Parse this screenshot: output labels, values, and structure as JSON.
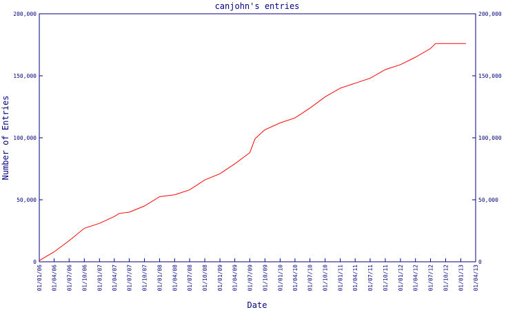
{
  "chart_data": {
    "type": "line",
    "title": "canjohn's entries",
    "x_label": "Date",
    "y_label": "Number of Entries",
    "x": [
      "01/01/06",
      "01/04/06",
      "01/07/06",
      "01/10/06",
      "01/01/07",
      "01/04/07",
      "01/05/07",
      "01/07/07",
      "01/10/07",
      "01/01/08",
      "01/04/08",
      "01/07/08",
      "01/10/08",
      "01/01/09",
      "01/04/09",
      "01/07/09",
      "01/08/09",
      "01/09/09",
      "01/10/09",
      "01/01/10",
      "01/04/10",
      "01/07/10",
      "01/10/10",
      "01/01/11",
      "01/04/11",
      "01/07/11",
      "01/10/11",
      "01/01/12",
      "01/04/12",
      "01/07/12",
      "01/08/12",
      "01/02/13"
    ],
    "series": [
      {
        "name": "entries",
        "color": "#ff0000",
        "values": [
          1000,
          8000,
          17000,
          27000,
          31000,
          36500,
          39000,
          40000,
          45000,
          52500,
          54000,
          58000,
          66000,
          71000,
          79000,
          88000,
          99000,
          103000,
          106500,
          112000,
          116000,
          124000,
          133000,
          140000,
          144000,
          148000,
          155000,
          159000,
          165000,
          172000,
          176000,
          176000
        ]
      }
    ],
    "xlim": [
      "01/01/06",
      "01/04/13"
    ],
    "xticks": [
      "01/01/06",
      "01/04/06",
      "01/07/06",
      "01/10/06",
      "01/01/07",
      "01/04/07",
      "01/07/07",
      "01/10/07",
      "01/01/08",
      "01/04/08",
      "01/07/08",
      "01/10/08",
      "01/01/09",
      "01/04/09",
      "01/07/09",
      "01/10/09",
      "01/01/10",
      "01/04/10",
      "01/07/10",
      "01/10/10",
      "01/01/11",
      "01/04/11",
      "01/07/11",
      "01/10/11",
      "01/01/12",
      "01/04/12",
      "01/07/12",
      "01/10/12",
      "01/01/13",
      "01/04/13"
    ],
    "ylim": [
      0,
      200000
    ],
    "yticks": [
      0,
      {
        "value": 50000,
        "label": "50,000"
      },
      {
        "value": 100000,
        "label": "100,000"
      },
      {
        "value": 150000,
        "label": "150,000"
      },
      {
        "value": 200000,
        "label": "200,000"
      }
    ],
    "axis_color": "#000080"
  }
}
